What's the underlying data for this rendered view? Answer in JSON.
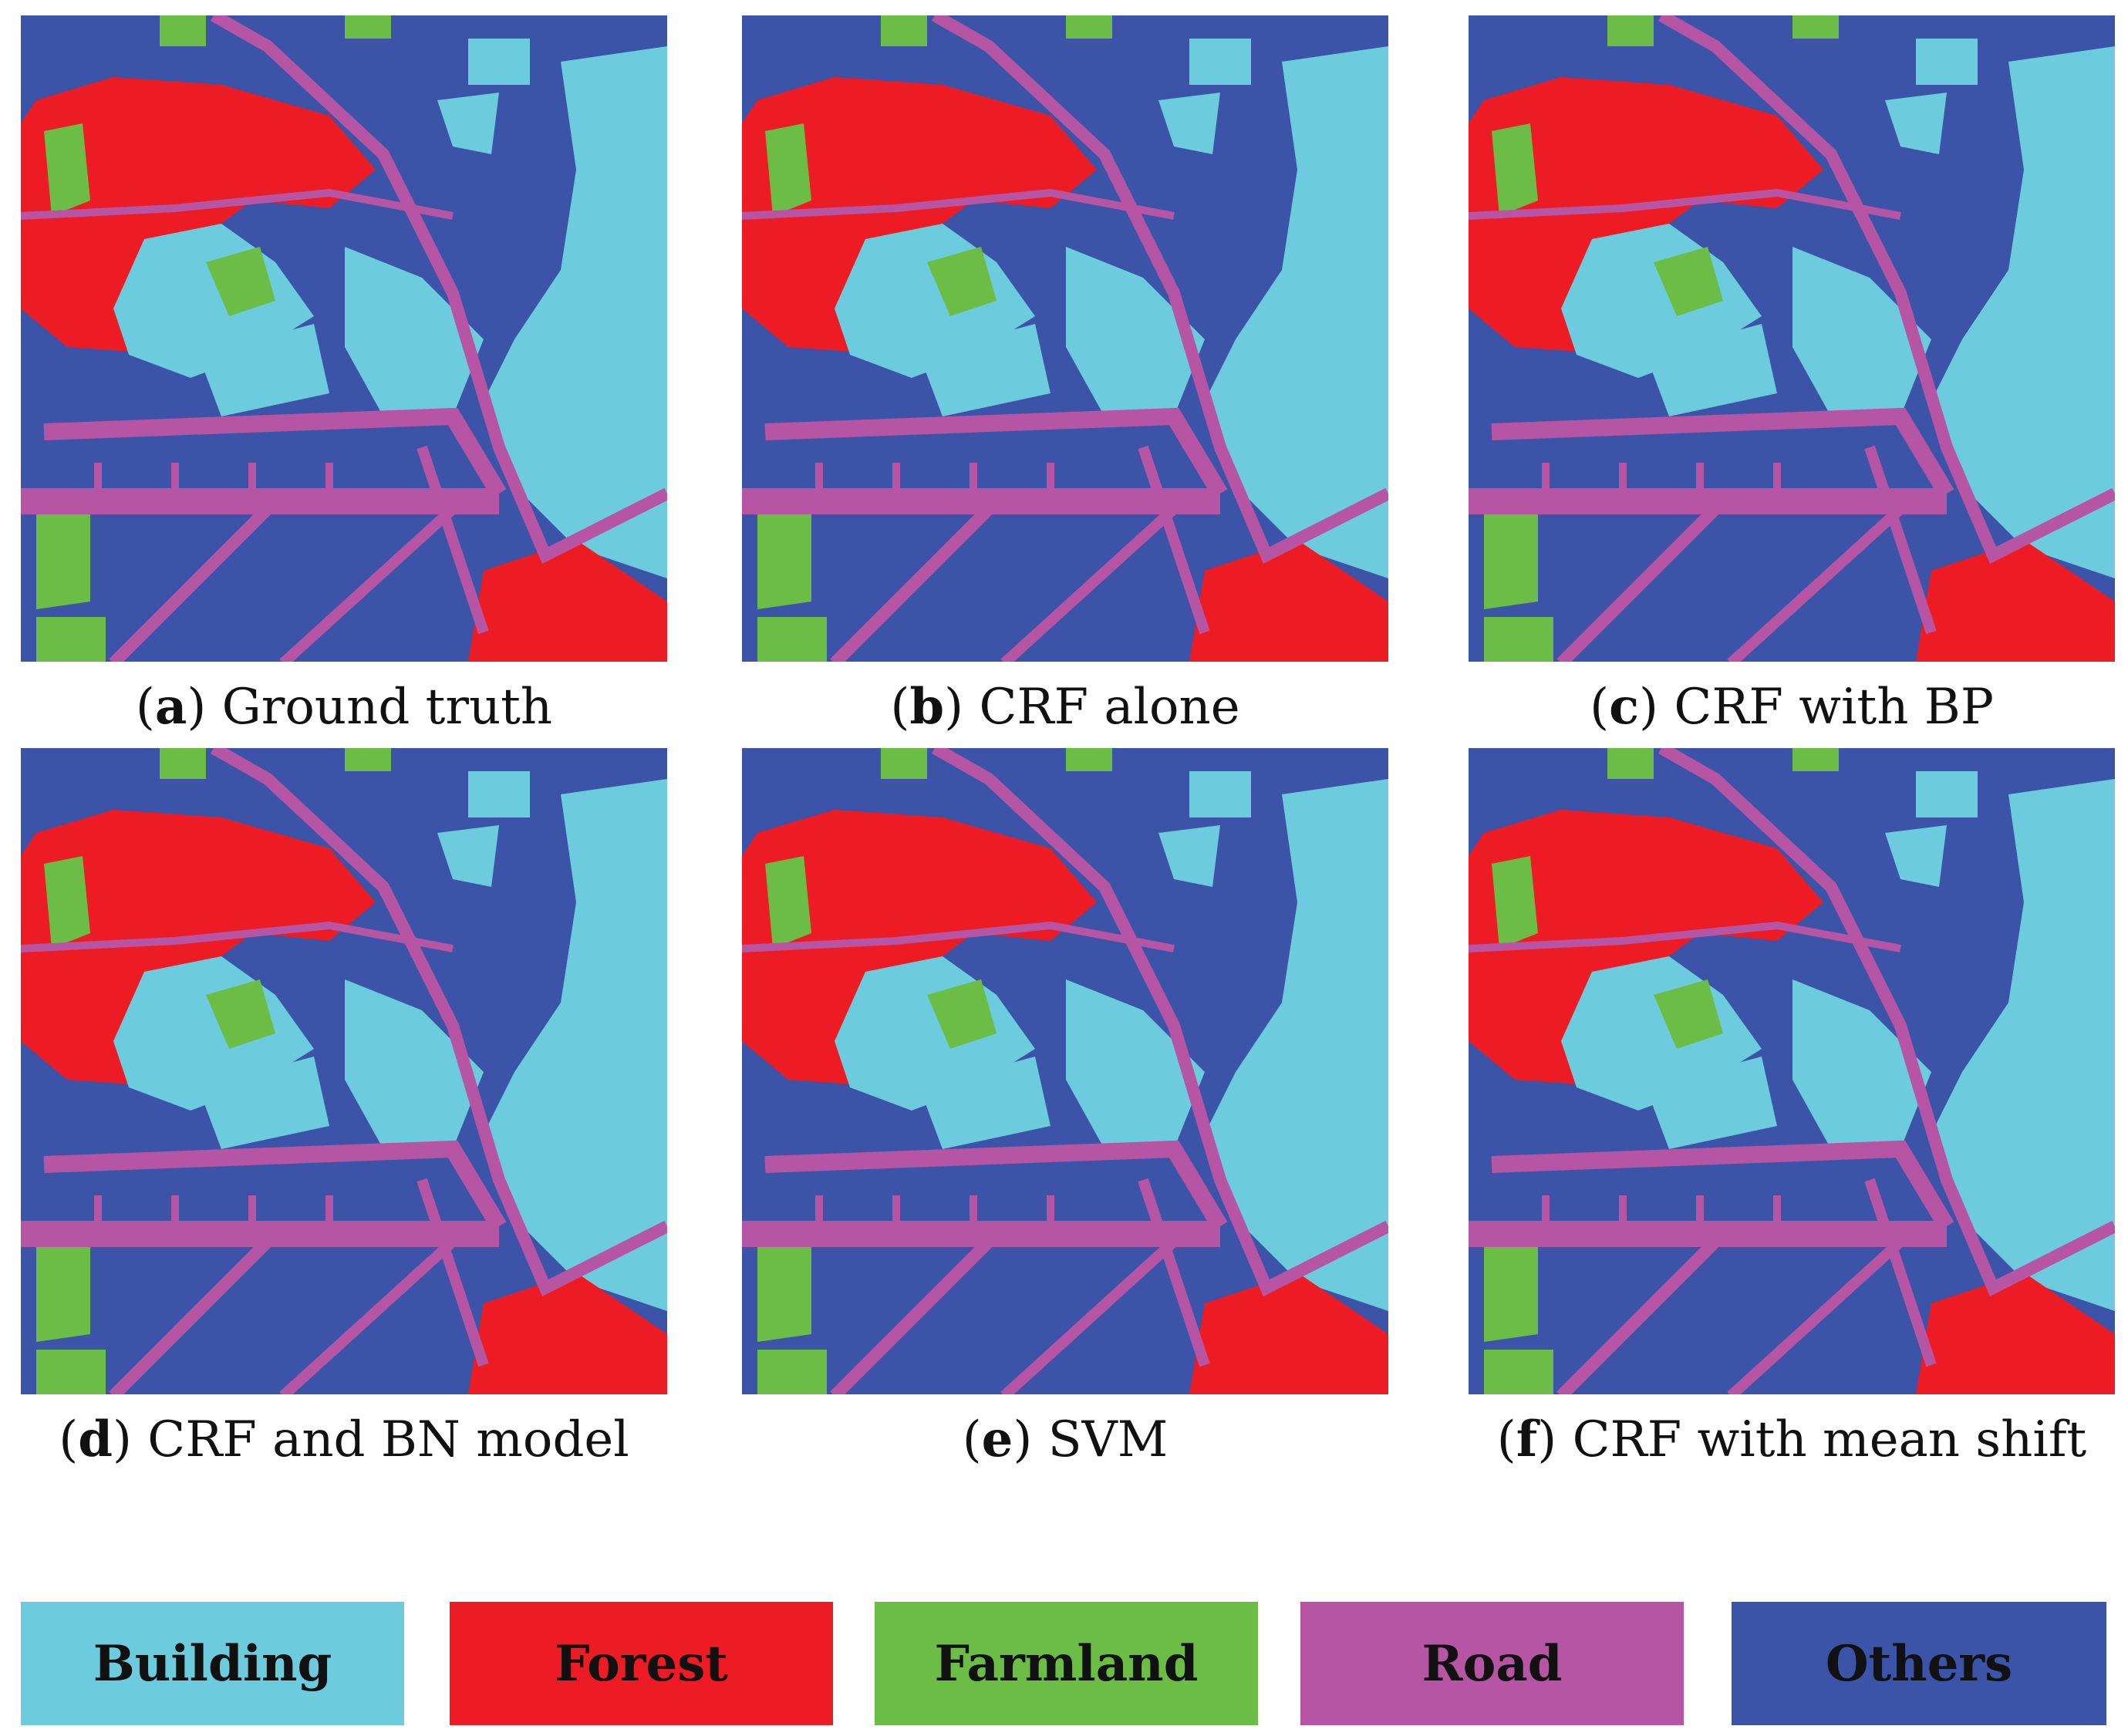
{
  "colors": {
    "building": "#6ccbdc",
    "forest": "#ed1c24",
    "farmland": "#6cbd45",
    "road": "#b755a5",
    "others": "#3b54a8"
  },
  "panels": [
    {
      "letter": "a",
      "caption": "Ground truth"
    },
    {
      "letter": "b",
      "caption": "CRF alone"
    },
    {
      "letter": "c",
      "caption": "CRF with BP"
    },
    {
      "letter": "d",
      "caption": "CRF and BN model"
    },
    {
      "letter": "e",
      "caption": "SVM"
    },
    {
      "letter": "f",
      "caption": "CRF with mean shift"
    }
  ],
  "legend": [
    {
      "label": "Building",
      "color": "#6ccbdc"
    },
    {
      "label": "Forest",
      "color": "#ed1c24"
    },
    {
      "label": "Farmland",
      "color": "#6cbd45"
    },
    {
      "label": "Road",
      "color": "#b755a5"
    },
    {
      "label": "Others",
      "color": "#3b54a8"
    }
  ]
}
